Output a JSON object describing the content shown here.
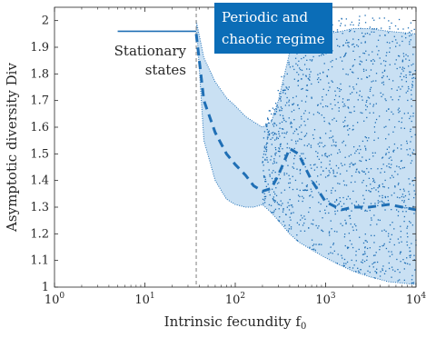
{
  "chart_data": {
    "type": "scatter",
    "xlabel": "Intrinsic fecundity f",
    "xlabel_sub": "0",
    "ylabel": "Asymptotic diversity Div",
    "xscale": "log",
    "xlim": [
      1,
      10000
    ],
    "ylim": [
      1,
      2.05
    ],
    "grid": false,
    "x_tick_labels": [
      {
        "base": "10",
        "exp": "0",
        "value": 1
      },
      {
        "base": "10",
        "exp": "1",
        "value": 10
      },
      {
        "base": "10",
        "exp": "2",
        "value": 100
      },
      {
        "base": "10",
        "exp": "3",
        "value": 1000
      },
      {
        "base": "10",
        "exp": "4",
        "value": 10000
      }
    ],
    "y_ticks": [
      1,
      1.1,
      1.2,
      1.3,
      1.4,
      1.5,
      1.6,
      1.7,
      1.8,
      1.9,
      2
    ],
    "y_tick_labels": [
      "1",
      "1.1",
      "1.2",
      "1.3",
      "1.4",
      "1.5",
      "1.6",
      "1.7",
      "1.8",
      "1.9",
      "2"
    ],
    "threshold_x": 37,
    "colors": {
      "series": "#1f6fb5",
      "band": "#c9e0f3",
      "threshold": "#7f7f7f",
      "annotation_box": "#0b6db7"
    },
    "annotations": {
      "stationary_line1": "Stationary",
      "stationary_line2": "states",
      "periodic_line1": "Periodic and",
      "periodic_line2": "chaotic regime"
    },
    "series": [
      {
        "kind": "stationary_line",
        "x": [
          5,
          37
        ],
        "y": [
          1.96,
          1.96
        ]
      },
      {
        "kind": "band_upper",
        "x": [
          37,
          45,
          60,
          80,
          100,
          130,
          160,
          200,
          250,
          300,
          400,
          500,
          700,
          1000,
          1500,
          2000,
          3000,
          5000,
          10000
        ],
        "y": [
          2.0,
          1.86,
          1.77,
          1.71,
          1.68,
          1.64,
          1.62,
          1.6,
          1.62,
          1.7,
          1.88,
          1.9,
          1.92,
          1.95,
          1.96,
          1.97,
          1.97,
          1.96,
          1.95
        ]
      },
      {
        "kind": "band_lower",
        "x": [
          37,
          45,
          60,
          80,
          100,
          130,
          160,
          200,
          250,
          300,
          400,
          500,
          700,
          1000,
          1500,
          2000,
          3000,
          5000,
          10000
        ],
        "y": [
          2.0,
          1.55,
          1.4,
          1.33,
          1.31,
          1.3,
          1.3,
          1.31,
          1.28,
          1.25,
          1.2,
          1.17,
          1.14,
          1.11,
          1.08,
          1.06,
          1.04,
          1.02,
          1.01
        ]
      },
      {
        "kind": "mean_dashed",
        "x": [
          37,
          45,
          60,
          80,
          100,
          130,
          160,
          200,
          250,
          300,
          400,
          500,
          700,
          1000,
          1500,
          2000,
          3000,
          5000,
          10000
        ],
        "y": [
          1.95,
          1.7,
          1.58,
          1.5,
          1.46,
          1.42,
          1.38,
          1.36,
          1.37,
          1.42,
          1.52,
          1.5,
          1.4,
          1.32,
          1.29,
          1.3,
          1.3,
          1.31,
          1.29
        ]
      }
    ]
  }
}
